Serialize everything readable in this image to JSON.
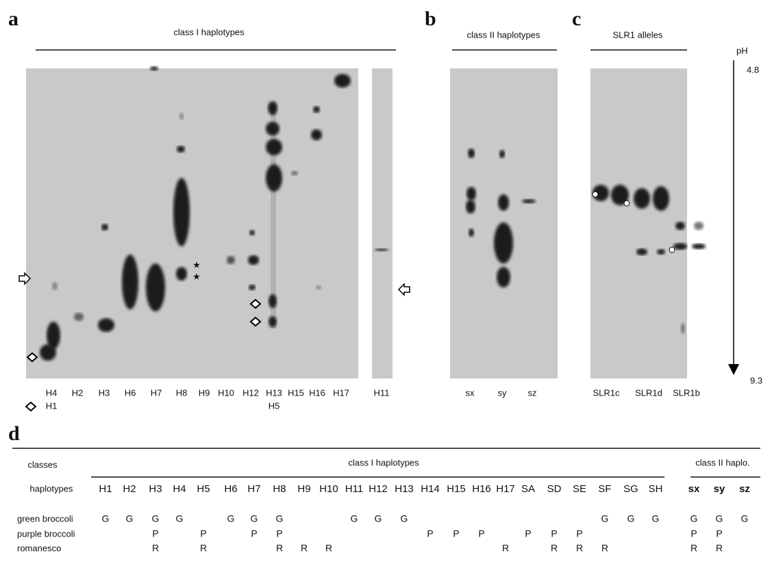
{
  "panel_a": {
    "label": "a",
    "title": "class I haplotypes",
    "lanes": [
      "H4",
      "H2",
      "H3",
      "H6",
      "H7",
      "H8",
      "H9",
      "H10",
      "H12",
      "H13",
      "H15",
      "H16",
      "H17"
    ],
    "lanes_row2": [
      "H1",
      "H5"
    ],
    "extra_lane": "H11"
  },
  "panel_b": {
    "label": "b",
    "title": "class II haplotypes",
    "lanes": [
      "sx",
      "sy",
      "sz"
    ]
  },
  "panel_c": {
    "label": "c",
    "title": "SLR1 alleles",
    "lanes": [
      "SLR1c",
      "SLR1d",
      "SLR1b"
    ]
  },
  "ph_axis": {
    "label": "pH",
    "top": 4.8,
    "bottom": 9.3
  },
  "panel_d": {
    "label": "d",
    "classes_header": "classes",
    "group1": "class I haplotypes",
    "group2": "class II haplo.",
    "row_header": "haplotypes",
    "haplotypes": [
      "H1",
      "H2",
      "H3",
      "H4",
      "H5",
      "H6",
      "H7",
      "H8",
      "H9",
      "H10",
      "H11",
      "H12",
      "H13",
      "H14",
      "H15",
      "H16",
      "H17",
      "SA",
      "SD",
      "SE",
      "SF",
      "SG",
      "SH",
      "sx",
      "sy",
      "sz"
    ],
    "rows": [
      {
        "name": "green broccoli",
        "cells": [
          "G",
          "G",
          "G",
          "G",
          null,
          "G",
          "G",
          "G",
          null,
          null,
          "G",
          "G",
          "G",
          null,
          null,
          null,
          null,
          null,
          null,
          null,
          "G",
          "G",
          "G",
          "G",
          "G",
          "G"
        ]
      },
      {
        "name": "purple broccoli",
        "cells": [
          null,
          null,
          "P",
          null,
          "P",
          null,
          "P",
          "P",
          null,
          null,
          null,
          null,
          null,
          "P",
          "P",
          "P",
          null,
          "P",
          "P",
          "P",
          null,
          null,
          null,
          "P",
          "P",
          null
        ]
      },
      {
        "name": "romanesco",
        "cells": [
          null,
          null,
          "R",
          null,
          "R",
          null,
          null,
          "R",
          "R",
          "R",
          null,
          null,
          null,
          null,
          null,
          null,
          "R",
          null,
          "R",
          "R",
          "R",
          null,
          null,
          "R",
          "R",
          null
        ]
      }
    ]
  }
}
